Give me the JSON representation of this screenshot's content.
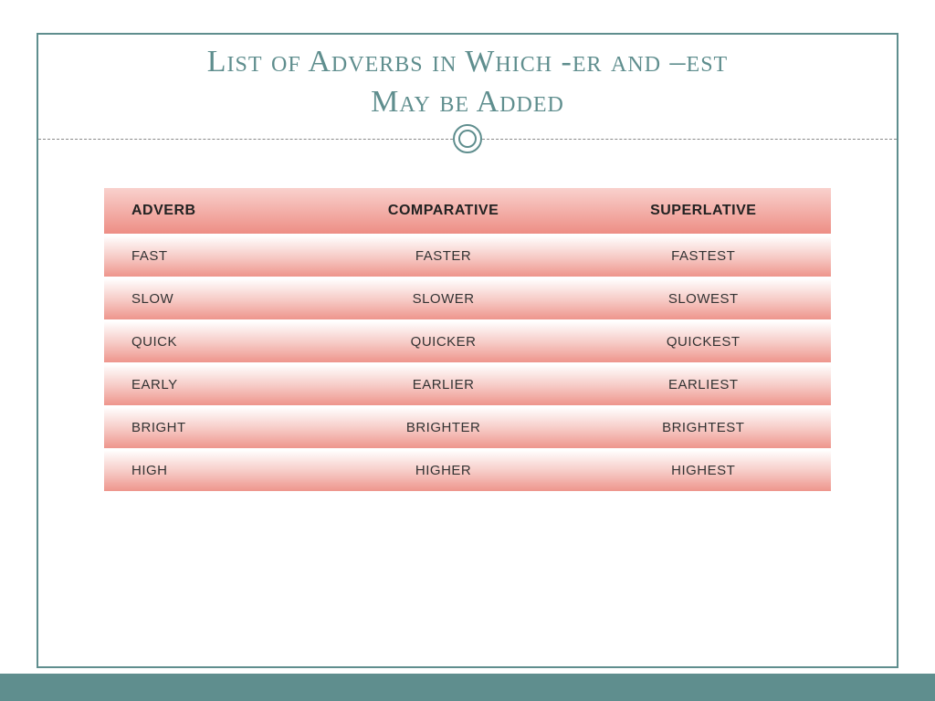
{
  "title_line1": "List of Adverbs in Which -er and –est",
  "title_line2": "May be Added",
  "headers": {
    "c1": "Adverb",
    "c2": "Comparative",
    "c3": "Superlative"
  },
  "rows": [
    {
      "c1": "FAST",
      "c2": "FASTER",
      "c3": "FASTEST"
    },
    {
      "c1": "SLOW",
      "c2": "SLOWER",
      "c3": "SLOWEST"
    },
    {
      "c1": "QUICK",
      "c2": "QUICKER",
      "c3": "QUICKEST"
    },
    {
      "c1": "EARLY",
      "c2": "EARLIER",
      "c3": "EARLIEST"
    },
    {
      "c1": "BRIGHT",
      "c2": "BRIGHTER",
      "c3": "BRIGHTEST"
    },
    {
      "c1": "HIGH",
      "c2": "HIGHER",
      "c3": "HIGHEST"
    }
  ],
  "colors": {
    "accent": "#5f8e8e",
    "header_grad_top": "#f9d1cd",
    "header_grad_bottom": "#ed8e85",
    "row_grad_top": "#ffffff",
    "row_grad_mid": "#f6c8c3",
    "row_grad_bottom": "#ee958c"
  }
}
